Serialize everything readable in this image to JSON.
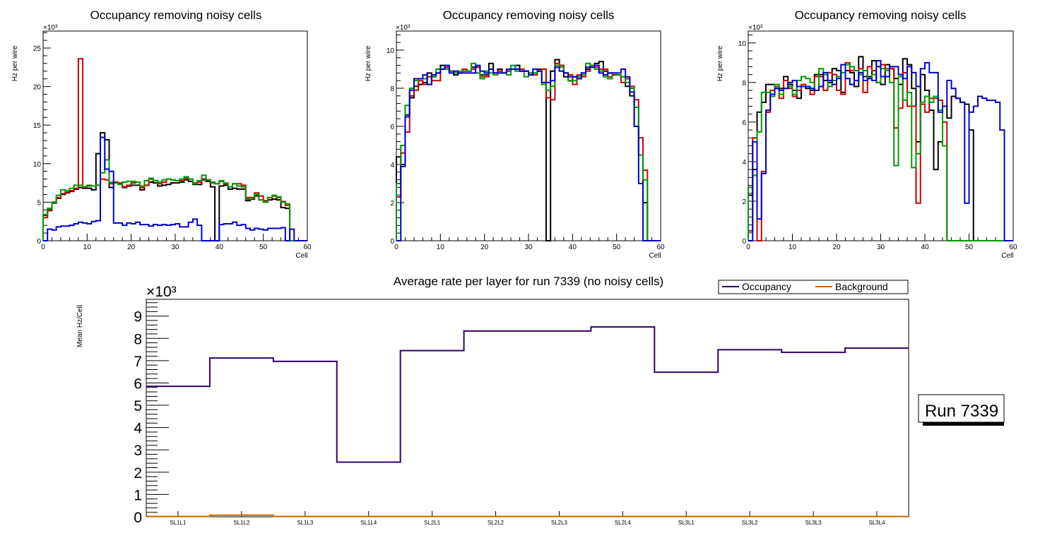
{
  "chart_data": [
    {
      "type": "bar",
      "style": "step-histogram",
      "title": "Occupancy removing noisy cells",
      "xlabel": "Cell",
      "ylabel": "Hz per wire",
      "y_multiplier": "×10³",
      "xlim": [
        0,
        60
      ],
      "ylim": [
        0,
        27.2
      ],
      "x_ticks": [
        "0",
        "10",
        "20",
        "30",
        "40",
        "50",
        "60"
      ],
      "y_ticks": [
        "0",
        "5",
        "10",
        "15",
        "20",
        "25"
      ],
      "y_tick_values": [
        0,
        5,
        10,
        15,
        20,
        25
      ],
      "bin_width": 1,
      "series": [
        {
          "name": "black",
          "color": "#000000",
          "values": [
            3.3,
            4.0,
            4.9,
            5.5,
            6.0,
            6.2,
            6.4,
            6.7,
            6.9,
            6.8,
            6.8,
            6.6,
            11.3,
            14.0,
            13.1,
            6.9,
            7.5,
            7.4,
            6.9,
            7.1,
            7.2,
            7.2,
            6.6,
            7.2,
            7.6,
            7.5,
            7.1,
            7.2,
            7.3,
            7.5,
            7.5,
            7.6,
            7.9,
            7.7,
            7.3,
            7.3,
            7.9,
            7.7,
            7.0,
            0,
            7.1,
            7.2,
            6.7,
            6.8,
            6.7,
            6.7,
            5.2,
            5.4,
            5.8,
            5.3,
            5.0,
            5.3,
            5.4,
            5.3,
            4.3,
            4.2,
            0,
            0,
            0,
            0
          ]
        },
        {
          "name": "red",
          "color": "#cc0000",
          "values": [
            3.0,
            3.9,
            5.0,
            5.6,
            6.1,
            6.3,
            6.5,
            6.8,
            23.6,
            6.9,
            7.1,
            7.1,
            7.2,
            8.0,
            7.9,
            7.4,
            7.6,
            7.5,
            7.0,
            7.2,
            7.5,
            7.6,
            6.9,
            7.2,
            8.0,
            7.8,
            7.4,
            7.6,
            8.0,
            7.9,
            7.8,
            7.8,
            8.1,
            8.0,
            7.5,
            7.6,
            8.0,
            7.9,
            7.5,
            7.4,
            7.7,
            7.4,
            7.0,
            7.4,
            7.4,
            7.2,
            5.6,
            5.6,
            6.2,
            5.8,
            5.2,
            5.6,
            5.8,
            5.6,
            5.1,
            4.6,
            0,
            0,
            0,
            0
          ]
        },
        {
          "name": "green",
          "color": "#009900",
          "values": [
            3.4,
            4.2,
            5.0,
            5.9,
            6.6,
            6.5,
            6.8,
            7.2,
            7.2,
            7.0,
            7.2,
            7.1,
            7.2,
            8.8,
            10.5,
            7.6,
            7.5,
            7.3,
            7.6,
            7.7,
            7.7,
            7.6,
            7.1,
            7.8,
            8.1,
            7.8,
            7.6,
            7.9,
            8.0,
            7.9,
            7.8,
            8.0,
            8.3,
            8.0,
            7.4,
            7.8,
            8.5,
            7.9,
            7.6,
            7.4,
            7.8,
            7.5,
            7.0,
            7.4,
            7.1,
            7.0,
            5.4,
            5.5,
            6.0,
            5.3,
            5.0,
            5.6,
            5.9,
            5.7,
            5.0,
            4.8,
            0,
            0,
            0,
            0
          ]
        },
        {
          "name": "blue",
          "color": "#0000cc",
          "values": [
            0,
            1.5,
            1.4,
            1.8,
            1.9,
            1.9,
            2.0,
            2.2,
            2.4,
            2.3,
            2.2,
            2.5,
            2.6,
            13.4,
            9.3,
            9.0,
            2.3,
            2.3,
            2.0,
            2.3,
            2.2,
            2.4,
            2.1,
            2.1,
            1.9,
            2.1,
            2.0,
            2.1,
            2.0,
            2.1,
            2.2,
            1.8,
            1.8,
            2.4,
            2.8,
            2.0,
            0,
            0,
            0,
            0,
            2.1,
            2.2,
            2.2,
            2.4,
            2.0,
            2.1,
            1.6,
            1.4,
            1.6,
            1.5,
            1.4,
            1.6,
            1.6,
            1.6,
            1.7,
            0,
            1.5,
            0,
            0,
            0
          ]
        }
      ]
    },
    {
      "type": "bar",
      "style": "step-histogram",
      "title": "Occupancy removing noisy cells",
      "xlabel": "Cell",
      "ylabel": "Hz per wire",
      "y_multiplier": "×10³",
      "xlim": [
        0,
        60
      ],
      "ylim": [
        0,
        11.0
      ],
      "x_ticks": [
        "0",
        "10",
        "20",
        "30",
        "40",
        "50",
        "60"
      ],
      "y_ticks": [
        "0",
        "2",
        "4",
        "6",
        "8",
        "10"
      ],
      "y_tick_values": [
        0,
        2,
        4,
        6,
        8,
        10
      ],
      "bin_width": 1,
      "series": [
        {
          "name": "black",
          "color": "#000000",
          "values": [
            4.4,
            4.0,
            6.6,
            7.5,
            8.1,
            8.2,
            8.3,
            8.8,
            8.6,
            8.8,
            9.2,
            9.1,
            8.9,
            8.7,
            8.8,
            8.9,
            8.9,
            9.1,
            9.1,
            8.7,
            8.7,
            9.3,
            8.8,
            9.0,
            8.8,
            8.9,
            9.0,
            9.2,
            8.9,
            8.9,
            8.7,
            8.8,
            9.0,
            9.0,
            0,
            8.9,
            9.5,
            9.2,
            8.6,
            8.4,
            8.6,
            8.6,
            8.8,
            9.0,
            9.2,
            9.3,
            9.4,
            8.9,
            8.8,
            8.7,
            8.7,
            8.6,
            8.1,
            7.6,
            6.0,
            4.5,
            2.0,
            0,
            0,
            0
          ]
        },
        {
          "name": "red",
          "color": "#cc0000",
          "values": [
            2.3,
            4.6,
            5.7,
            7.6,
            7.9,
            8.4,
            8.2,
            8.6,
            8.4,
            8.4,
            9.0,
            9.1,
            8.9,
            8.8,
            8.8,
            9.0,
            8.9,
            9.0,
            9.1,
            8.6,
            8.6,
            9.0,
            8.8,
            8.9,
            8.8,
            8.9,
            9.0,
            9.0,
            9.0,
            8.9,
            8.8,
            8.7,
            8.9,
            9.0,
            7.5,
            7.4,
            9.3,
            9.2,
            8.8,
            8.7,
            8.2,
            8.7,
            8.6,
            8.9,
            9.1,
            9.1,
            9.0,
            9.0,
            8.6,
            8.7,
            8.7,
            8.3,
            8.5,
            8.1,
            7.4,
            5.4,
            3.7,
            0,
            0,
            0
          ]
        },
        {
          "name": "green",
          "color": "#009900",
          "values": [
            3.0,
            5.0,
            7.1,
            8.0,
            8.4,
            8.5,
            8.5,
            8.2,
            8.6,
            9.0,
            9.0,
            9.0,
            8.9,
            8.8,
            8.9,
            8.9,
            8.9,
            9.3,
            8.8,
            8.5,
            8.9,
            8.8,
            8.7,
            8.8,
            8.8,
            8.7,
            9.2,
            8.9,
            8.9,
            8.6,
            8.8,
            8.8,
            8.9,
            8.2,
            7.9,
            8.1,
            9.2,
            9.1,
            8.8,
            8.4,
            8.4,
            8.6,
            8.7,
            9.3,
            9.2,
            9.0,
            8.9,
            8.6,
            8.5,
            8.8,
            8.7,
            8.6,
            8.3,
            8.0,
            7.0,
            4.5,
            3.2,
            0,
            0,
            0
          ]
        },
        {
          "name": "blue",
          "color": "#0000cc",
          "values": [
            0,
            3.9,
            6.5,
            7.9,
            8.5,
            8.5,
            8.7,
            8.2,
            8.7,
            8.8,
            9.0,
            9.2,
            8.8,
            8.9,
            8.8,
            8.8,
            8.8,
            8.8,
            9.2,
            8.9,
            8.8,
            9.0,
            8.8,
            8.8,
            8.8,
            9.0,
            9.0,
            9.0,
            8.9,
            8.9,
            8.7,
            9.0,
            8.9,
            8.3,
            8.3,
            8.4,
            9.1,
            8.9,
            8.8,
            8.6,
            8.6,
            8.5,
            8.8,
            9.1,
            9.1,
            9.2,
            8.8,
            8.7,
            8.8,
            8.8,
            8.8,
            9.0,
            8.6,
            7.8,
            6.0,
            3.0,
            0,
            0,
            0,
            0
          ]
        }
      ]
    },
    {
      "type": "bar",
      "style": "step-histogram",
      "title": "Occupancy removing noisy cells",
      "xlabel": "Cell",
      "ylabel": "Hz per wire",
      "y_multiplier": "×10³",
      "xlim": [
        0,
        60
      ],
      "ylim": [
        0,
        10.6
      ],
      "x_ticks": [
        "0",
        "10",
        "20",
        "30",
        "40",
        "50",
        "60"
      ],
      "y_ticks": [
        "0",
        "2",
        "4",
        "6",
        "8",
        "10"
      ],
      "y_tick_values": [
        0,
        2,
        4,
        6,
        8,
        10
      ],
      "bin_width": 1,
      "series": [
        {
          "name": "black",
          "color": "#000000",
          "values": [
            2.3,
            3.6,
            6.5,
            7.0,
            7.9,
            7.9,
            7.7,
            7.7,
            8.3,
            7.9,
            7.6,
            7.2,
            7.8,
            7.7,
            7.6,
            8.4,
            8.4,
            8.1,
            8.0,
            8.7,
            8.6,
            7.5,
            8.6,
            8.5,
            7.8,
            9.3,
            8.3,
            8.3,
            9.1,
            8.8,
            7.9,
            8.9,
            8.7,
            8.2,
            7.9,
            9.2,
            8.9,
            7.7,
            5.0,
            8.4,
            7.6,
            6.6,
            3.6,
            5.0,
            6.8,
            6.2,
            7.3,
            7.2,
            7.0,
            6.9,
            5.6,
            0,
            0,
            0,
            0,
            0,
            0,
            0,
            0,
            0
          ]
        },
        {
          "name": "red",
          "color": "#cc0000",
          "values": [
            0.5,
            5.2,
            0,
            3.5,
            6.5,
            7.6,
            7.8,
            7.2,
            8.1,
            7.7,
            7.3,
            7.6,
            7.9,
            7.8,
            7.4,
            8.3,
            8.3,
            7.6,
            8.5,
            8.4,
            7.6,
            7.4,
            9.0,
            8.6,
            8.6,
            8.7,
            7.5,
            8.8,
            8.6,
            8.0,
            8.9,
            8.7,
            8.7,
            5.7,
            6.7,
            8.5,
            6.8,
            6.8,
            1.9,
            6.9,
            6.5,
            7.2,
            7.2,
            7.1,
            6.0,
            0,
            0,
            0,
            0,
            0,
            0,
            0,
            0,
            0,
            0,
            0,
            0,
            0,
            0,
            0
          ]
        },
        {
          "name": "green",
          "color": "#009900",
          "values": [
            2.7,
            3.3,
            5.5,
            7.5,
            7.5,
            7.3,
            7.9,
            7.4,
            7.7,
            7.8,
            7.4,
            8.1,
            8.3,
            8.2,
            8.0,
            7.6,
            8.7,
            8.4,
            7.8,
            8.1,
            8.3,
            8.5,
            8.9,
            8.8,
            8.6,
            8.4,
            8.6,
            8.2,
            8.4,
            8.0,
            8.7,
            8.6,
            8.0,
            3.8,
            8.3,
            7.1,
            7.5,
            3.7,
            4.4,
            7.0,
            7.3,
            7.0,
            7.3,
            6.6,
            4.8,
            0,
            0,
            0,
            0,
            0,
            0,
            0,
            0,
            0,
            0,
            0,
            0,
            0,
            0,
            0
          ]
        },
        {
          "name": "blue",
          "color": "#0000cc",
          "values": [
            0,
            5.0,
            1.1,
            3.4,
            6.6,
            7.4,
            7.7,
            7.6,
            7.7,
            8.0,
            8.1,
            7.8,
            7.8,
            7.8,
            7.7,
            7.6,
            7.8,
            8.5,
            8.1,
            7.9,
            8.2,
            8.9,
            8.2,
            7.9,
            8.1,
            8.5,
            8.1,
            8.2,
            8.1,
            9.1,
            8.3,
            8.3,
            8.8,
            8.8,
            8.4,
            8.2,
            8.8,
            8.5,
            7.8,
            8.7,
            9.0,
            8.5,
            8.5,
            6.5,
            6.8,
            8.1,
            7.7,
            7.2,
            7.0,
            1.9,
            6.5,
            6.8,
            7.3,
            7.2,
            7.1,
            7.1,
            7.0,
            5.6,
            0,
            0
          ]
        }
      ]
    },
    {
      "type": "bar",
      "style": "step-histogram",
      "title": "Average rate per layer for run 7339 (no noisy cells)",
      "xlabel": "",
      "ylabel": "Mean Hz/Cell",
      "y_multiplier": "×10³",
      "ylim": [
        0,
        9.75
      ],
      "y_ticks": [
        "0",
        "1",
        "2",
        "3",
        "4",
        "5",
        "6",
        "7",
        "8",
        "9"
      ],
      "y_tick_values": [
        0,
        1,
        2,
        3,
        4,
        5,
        6,
        7,
        8,
        9
      ],
      "categories": [
        "SL1L1",
        "SL1L2",
        "SL1L3",
        "SL1L4",
        "SL2L1",
        "SL2L2",
        "SL2L3",
        "SL2L4",
        "SL3L1",
        "SL3L2",
        "SL3L3",
        "SL3L4"
      ],
      "series": [
        {
          "name": "Occupancy",
          "color": "#330066",
          "values": [
            5.85,
            7.12,
            6.97,
            2.45,
            7.45,
            8.33,
            8.33,
            8.51,
            6.48,
            7.49,
            7.37,
            7.56
          ]
        },
        {
          "name": "Background",
          "color": "#cc6600",
          "values": [
            0.01,
            0.07,
            0.01,
            0.01,
            0.01,
            0.01,
            0.01,
            0.01,
            0.01,
            0.01,
            0.01,
            0.01
          ]
        }
      ],
      "legend": {
        "position": "top-right",
        "entries": [
          "Occupancy",
          "Background"
        ]
      },
      "annotation": "Run 7339"
    }
  ]
}
